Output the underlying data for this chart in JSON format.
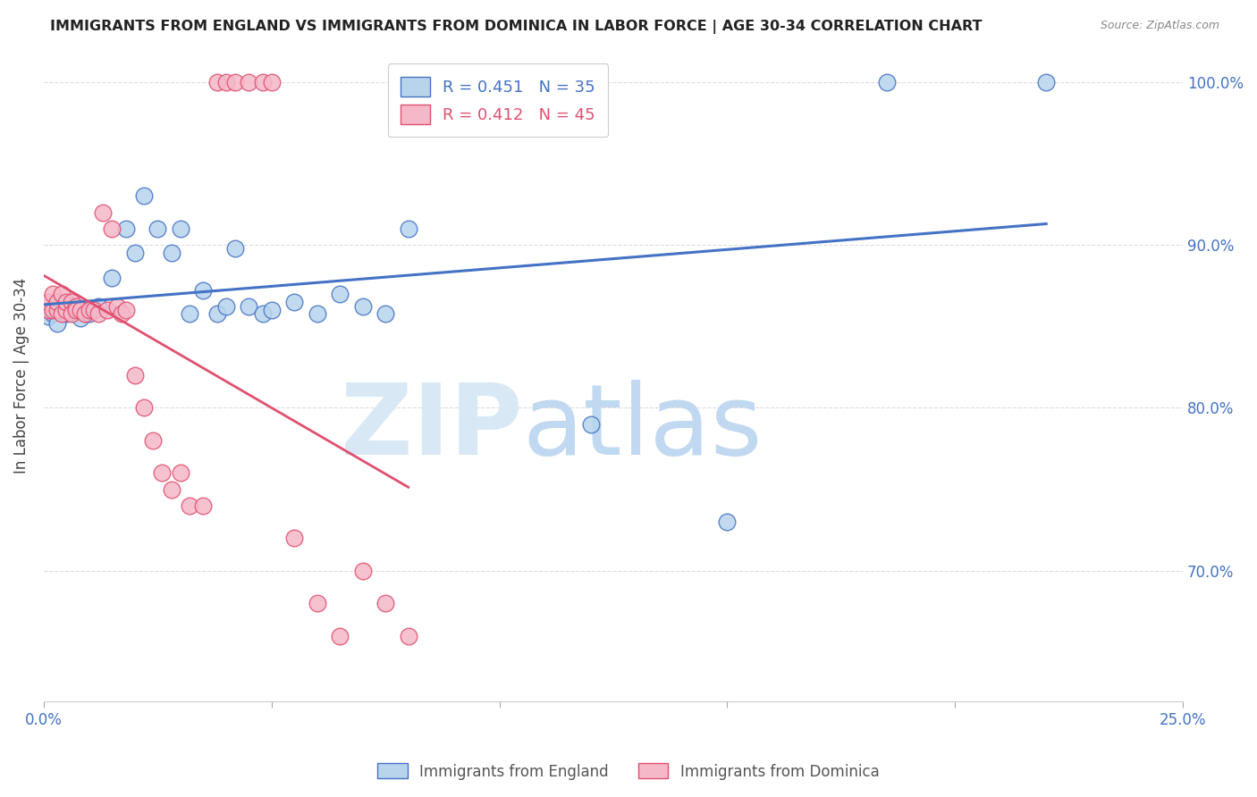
{
  "title": "IMMIGRANTS FROM ENGLAND VS IMMIGRANTS FROM DOMINICA IN LABOR FORCE | AGE 30-34 CORRELATION CHART",
  "source": "Source: ZipAtlas.com",
  "ylabel": "In Labor Force | Age 30-34",
  "england_R": 0.451,
  "england_N": 35,
  "dominica_R": 0.412,
  "dominica_N": 45,
  "england_color": "#b8d4ed",
  "dominica_color": "#f5b8c8",
  "england_line_color": "#4472c4",
  "dominica_line_color": "#e05070",
  "watermark_zip_color": "#d8e8f5",
  "watermark_atlas_color": "#c0d8f0",
  "background_color": "#ffffff",
  "england_x": [
    0.001,
    0.002,
    0.003,
    0.004,
    0.005,
    0.006,
    0.007,
    0.008,
    0.01,
    0.012,
    0.015,
    0.018,
    0.02,
    0.022,
    0.025,
    0.028,
    0.03,
    0.032,
    0.035,
    0.038,
    0.04,
    0.042,
    0.045,
    0.048,
    0.05,
    0.055,
    0.06,
    0.065,
    0.07,
    0.075,
    0.08,
    0.12,
    0.15,
    0.185,
    0.22
  ],
  "england_y": [
    0.856,
    0.858,
    0.852,
    0.86,
    0.858,
    0.862,
    0.86,
    0.855,
    0.858,
    0.862,
    0.88,
    0.91,
    0.895,
    0.93,
    0.91,
    0.895,
    0.91,
    0.858,
    0.872,
    0.858,
    0.862,
    0.898,
    0.862,
    0.858,
    0.86,
    0.865,
    0.858,
    0.87,
    0.862,
    0.858,
    0.91,
    0.79,
    0.73,
    1.0,
    1.0
  ],
  "dominica_x": [
    0.001,
    0.001,
    0.002,
    0.002,
    0.003,
    0.003,
    0.004,
    0.004,
    0.005,
    0.005,
    0.006,
    0.006,
    0.007,
    0.007,
    0.008,
    0.009,
    0.01,
    0.011,
    0.012,
    0.013,
    0.014,
    0.015,
    0.016,
    0.017,
    0.018,
    0.02,
    0.022,
    0.024,
    0.026,
    0.028,
    0.03,
    0.032,
    0.035,
    0.038,
    0.04,
    0.042,
    0.045,
    0.048,
    0.05,
    0.055,
    0.06,
    0.065,
    0.07,
    0.075,
    0.08
  ],
  "dominica_y": [
    0.86,
    0.865,
    0.86,
    0.87,
    0.86,
    0.865,
    0.858,
    0.87,
    0.86,
    0.865,
    0.865,
    0.858,
    0.862,
    0.86,
    0.86,
    0.858,
    0.86,
    0.86,
    0.858,
    0.92,
    0.86,
    0.91,
    0.862,
    0.858,
    0.86,
    0.82,
    0.8,
    0.78,
    0.76,
    0.75,
    0.76,
    0.74,
    0.74,
    1.0,
    1.0,
    1.0,
    1.0,
    1.0,
    1.0,
    0.72,
    0.68,
    0.66,
    0.7,
    0.68,
    0.66
  ],
  "xlim": [
    0.0,
    0.25
  ],
  "ylim": [
    0.62,
    1.02
  ],
  "grid_color": "#dddddd",
  "tick_color": "#4472c4",
  "title_color": "#222222",
  "source_color": "#888888",
  "ylabel_color": "#444444"
}
